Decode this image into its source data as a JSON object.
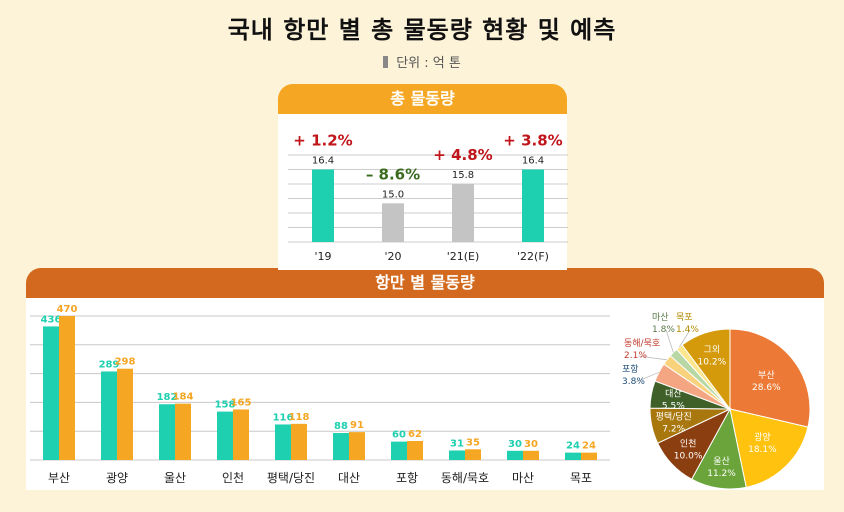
{
  "title": "국내 항만 별 총 물동량 현황 및 예측",
  "unit": "단위 : 억 톤",
  "colors": {
    "background": "#fdf3d9",
    "green": "#1ecfb0",
    "orange": "#f5a623",
    "gray": "#c4c4c4",
    "banner_orange": "#f5a623",
    "banner_brown": "#d2691e",
    "positive_red": "#c0161b",
    "negative_green": "#3a6b1f"
  },
  "chart_data": [
    {
      "type": "bar",
      "title": "총 물동량",
      "categories": [
        "'19",
        "'20",
        "'21(E)",
        "'22(F)"
      ],
      "values": [
        16.4,
        15.0,
        15.8,
        16.4
      ],
      "value_labels": [
        "16.4",
        "15.0",
        "15.8",
        "16.4"
      ],
      "bar_colors": [
        "#1ecfb0",
        "#c4c4c4",
        "#c4c4c4",
        "#1ecfb0"
      ],
      "annotations": [
        "+ 1.2%",
        "– 8.6%",
        "+ 4.8%",
        "+ 3.8%"
      ],
      "annotation_colors": [
        "#c0161b",
        "#3a6b1f",
        "#c0161b",
        "#c0161b"
      ],
      "ylim": [
        13.4,
        17.0
      ],
      "grid": true
    },
    {
      "type": "bar",
      "title": "항만 별 물동량",
      "categories": [
        "부산",
        "광양",
        "울산",
        "인천",
        "평택/당진",
        "대산",
        "포항",
        "동해/묵호",
        "마산",
        "목포"
      ],
      "series": [
        {
          "values": [
            436,
            289,
            182,
            158,
            116,
            88,
            60,
            31,
            30,
            24
          ],
          "color": "#1ecfb0"
        },
        {
          "values": [
            470,
            298,
            184,
            165,
            118,
            91,
            62,
            35,
            30,
            24
          ],
          "color": "#f5a623"
        }
      ],
      "ylim": [
        0,
        470
      ],
      "grid": true
    },
    {
      "type": "pie",
      "slices": [
        {
          "label": "부산",
          "pct": "28.6%",
          "value": 28.6,
          "color": "#ec7a36"
        },
        {
          "label": "광양",
          "pct": "18.1%",
          "value": 18.1,
          "color": "#ffc20e"
        },
        {
          "label": "울산",
          "pct": "11.2%",
          "value": 11.2,
          "color": "#6ba43a"
        },
        {
          "label": "인천",
          "pct": "10.0%",
          "value": 10.0,
          "color": "#8b3e0f"
        },
        {
          "label": "평택/당진",
          "pct": "7.2%",
          "value": 7.2,
          "color": "#a8780e"
        },
        {
          "label": "대산",
          "pct": "5.5%",
          "value": 5.5,
          "color": "#3f6129"
        },
        {
          "label": "포항",
          "pct": "3.8%",
          "value": 3.8,
          "color": "#f4a682"
        },
        {
          "label": "동해/묵호",
          "pct": "2.1%",
          "value": 2.1,
          "color": "#f9d27d"
        },
        {
          "label": "마산",
          "pct": "1.8%",
          "value": 1.8,
          "color": "#b7d7a5"
        },
        {
          "label": "목포",
          "pct": "1.4%",
          "value": 1.4,
          "color": "#fde68e"
        },
        {
          "label": "그외",
          "pct": "10.2%",
          "value": 10.2,
          "color": "#d49a0b"
        }
      ]
    }
  ]
}
